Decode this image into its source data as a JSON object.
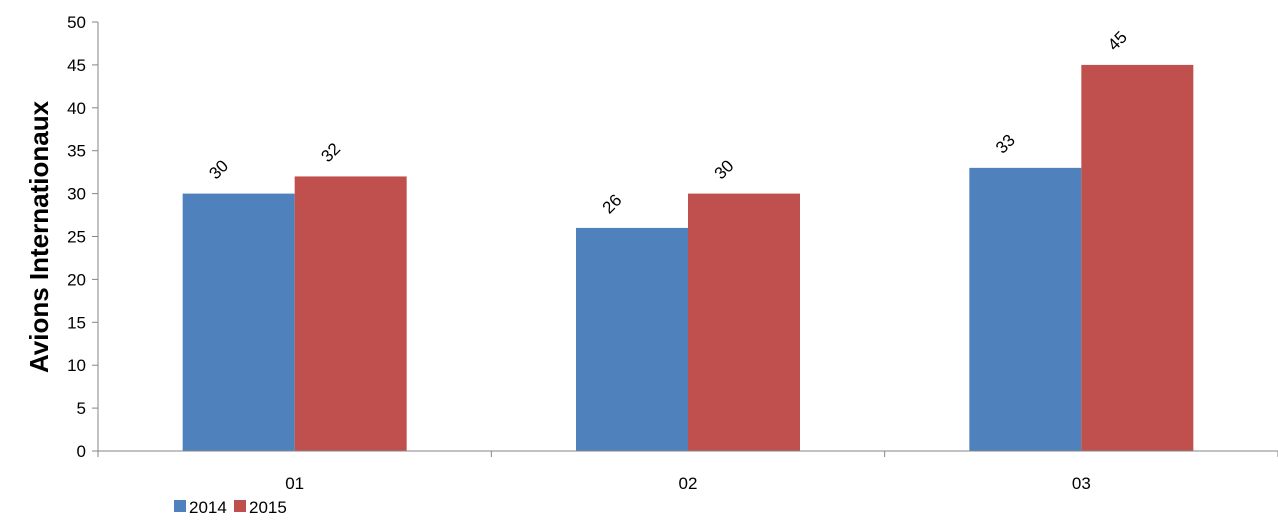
{
  "chart_data": {
    "type": "bar",
    "ylabel": "Avions Internationaux",
    "xlabel": "",
    "ylim": [
      0,
      50
    ],
    "ytick_step": 5,
    "categories": [
      "01",
      "02",
      "03"
    ],
    "series": [
      {
        "name": "2014",
        "color": "#4F81BD",
        "values": [
          30,
          26,
          33
        ]
      },
      {
        "name": "2015",
        "color": "#C0504D",
        "values": [
          32,
          30,
          45
        ]
      }
    ],
    "data_labels": true,
    "grid": false,
    "legend_position": "bottom-left"
  }
}
